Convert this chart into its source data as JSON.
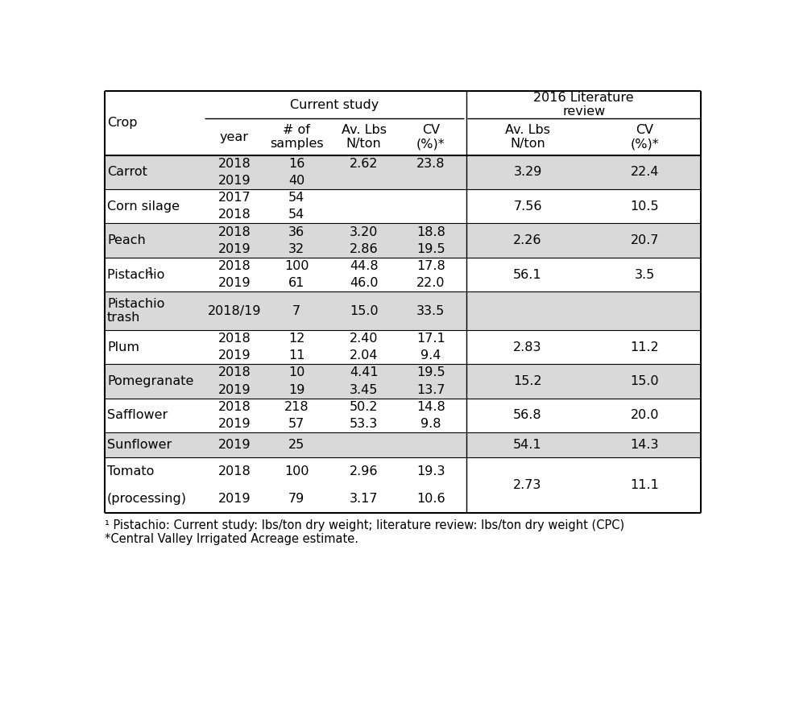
{
  "col_headers_row1_crop": "Crop",
  "col_headers_row1_current": "Current study",
  "col_headers_row1_lit": "2016 Literature\nreview",
  "col_headers_row2": {
    "year": "year",
    "samples": "# of\nsamples",
    "av_lbs": "Av. Lbs\nN/ton",
    "cv": "CV\n(%)*",
    "lit_av": "Av. Lbs\nN/ton",
    "lit_cv": "CV\n(%)*"
  },
  "rows": [
    {
      "crop": "Carrot",
      "crop_lines": 1,
      "sub_rows": [
        {
          "year": "2018",
          "samples": "16",
          "av_lbs": "2.62",
          "cv": "23.8"
        },
        {
          "year": "2019",
          "samples": "40",
          "av_lbs": "",
          "cv": ""
        }
      ],
      "lit_av": "3.29",
      "lit_cv": "22.4",
      "shaded": true
    },
    {
      "crop": "Corn silage",
      "crop_lines": 1,
      "sub_rows": [
        {
          "year": "2017",
          "samples": "54",
          "av_lbs": "",
          "cv": ""
        },
        {
          "year": "2018",
          "samples": "54",
          "av_lbs": "",
          "cv": ""
        }
      ],
      "lit_av": "7.56",
      "lit_cv": "10.5",
      "shaded": false
    },
    {
      "crop": "Peach",
      "crop_lines": 1,
      "sub_rows": [
        {
          "year": "2018",
          "samples": "36",
          "av_lbs": "3.20",
          "cv": "18.8"
        },
        {
          "year": "2019",
          "samples": "32",
          "av_lbs": "2.86",
          "cv": "19.5"
        }
      ],
      "lit_av": "2.26",
      "lit_cv": "20.7",
      "shaded": true
    },
    {
      "crop": "Pistachio",
      "crop_sup": "1",
      "crop_lines": 1,
      "sub_rows": [
        {
          "year": "2018",
          "samples": "100",
          "av_lbs": "44.8",
          "cv": "17.8"
        },
        {
          "year": "2019",
          "samples": "61",
          "av_lbs": "46.0",
          "cv": "22.0"
        }
      ],
      "lit_av": "56.1",
      "lit_cv": "3.5",
      "shaded": false
    },
    {
      "crop": "Pistachio\ntrash",
      "crop_lines": 2,
      "sub_rows": [
        {
          "year": "2018/19",
          "samples": "7",
          "av_lbs": "15.0",
          "cv": "33.5"
        }
      ],
      "lit_av": "",
      "lit_cv": "",
      "shaded": true
    },
    {
      "crop": "Plum",
      "crop_lines": 1,
      "sub_rows": [
        {
          "year": "2018",
          "samples": "12",
          "av_lbs": "2.40",
          "cv": "17.1"
        },
        {
          "year": "2019",
          "samples": "11",
          "av_lbs": "2.04",
          "cv": "9.4"
        }
      ],
      "lit_av": "2.83",
      "lit_cv": "11.2",
      "shaded": false
    },
    {
      "crop": "Pomegranate",
      "crop_lines": 1,
      "sub_rows": [
        {
          "year": "2018",
          "samples": "10",
          "av_lbs": "4.41",
          "cv": "19.5"
        },
        {
          "year": "2019",
          "samples": "19",
          "av_lbs": "3.45",
          "cv": "13.7"
        }
      ],
      "lit_av": "15.2",
      "lit_cv": "15.0",
      "shaded": true
    },
    {
      "crop": "Safflower",
      "crop_lines": 1,
      "sub_rows": [
        {
          "year": "2018",
          "samples": "218",
          "av_lbs": "50.2",
          "cv": "14.8"
        },
        {
          "year": "2019",
          "samples": "57",
          "av_lbs": "53.3",
          "cv": "9.8"
        }
      ],
      "lit_av": "56.8",
      "lit_cv": "20.0",
      "shaded": false
    },
    {
      "crop": "Sunflower",
      "crop_lines": 1,
      "sub_rows": [
        {
          "year": "2019",
          "samples": "25",
          "av_lbs": "",
          "cv": ""
        }
      ],
      "lit_av": "54.1",
      "lit_cv": "14.3",
      "shaded": true
    },
    {
      "crop": "Tomato",
      "crop_lines": 1,
      "crop_sub": "(processing)",
      "sub_rows": [
        {
          "year": "2018",
          "samples": "100",
          "av_lbs": "2.96",
          "cv": "19.3"
        },
        {
          "year": "2019",
          "samples": "79",
          "av_lbs": "3.17",
          "cv": "10.6"
        }
      ],
      "lit_av": "2.73",
      "lit_cv": "11.1",
      "shaded": false
    }
  ],
  "footnotes": [
    "¹ Pistachio: Current study: lbs/ton dry weight; literature review: lbs/ton dry weight (CPC)",
    "*Central Valley Irrigated Acreage estimate."
  ],
  "shade_color": "#d9d9d9",
  "white_color": "#ffffff",
  "font_size": 11.5,
  "header_font_size": 11.5
}
